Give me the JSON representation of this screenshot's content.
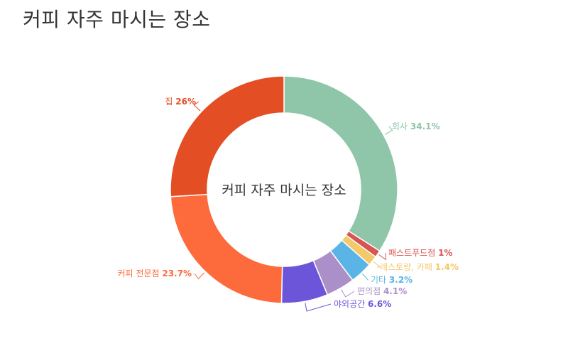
{
  "title": "커피 자주 마시는 장소",
  "chart_data": {
    "type": "pie",
    "donut": true,
    "title": "커피 자주 마시는 장소",
    "center_label": "커피 자주 마시는 장소",
    "slices": [
      {
        "label": "회사",
        "value": 34.1,
        "value_label": "34.1%",
        "color": "#8fc5a9"
      },
      {
        "label": "패스트푸드점",
        "value": 1.0,
        "value_label": "1%",
        "color": "#d9534f"
      },
      {
        "label": "레스토랑, 카페",
        "value": 1.4,
        "value_label": "1.4%",
        "color": "#f3c969"
      },
      {
        "label": "기타",
        "value": 3.2,
        "value_label": "3.2%",
        "color": "#5ab4e5"
      },
      {
        "label": "편의점",
        "value": 4.1,
        "value_label": "4.1%",
        "color": "#ab8fc9"
      },
      {
        "label": "야외공간",
        "value": 6.6,
        "value_label": "6.6%",
        "color": "#6c55d9"
      },
      {
        "label": "커피 전문점",
        "value": 23.7,
        "value_label": "23.7%",
        "color": "#fd6a3b"
      },
      {
        "label": "집",
        "value": 26,
        "value_label": "26%",
        "color": "#e34e24"
      }
    ]
  }
}
